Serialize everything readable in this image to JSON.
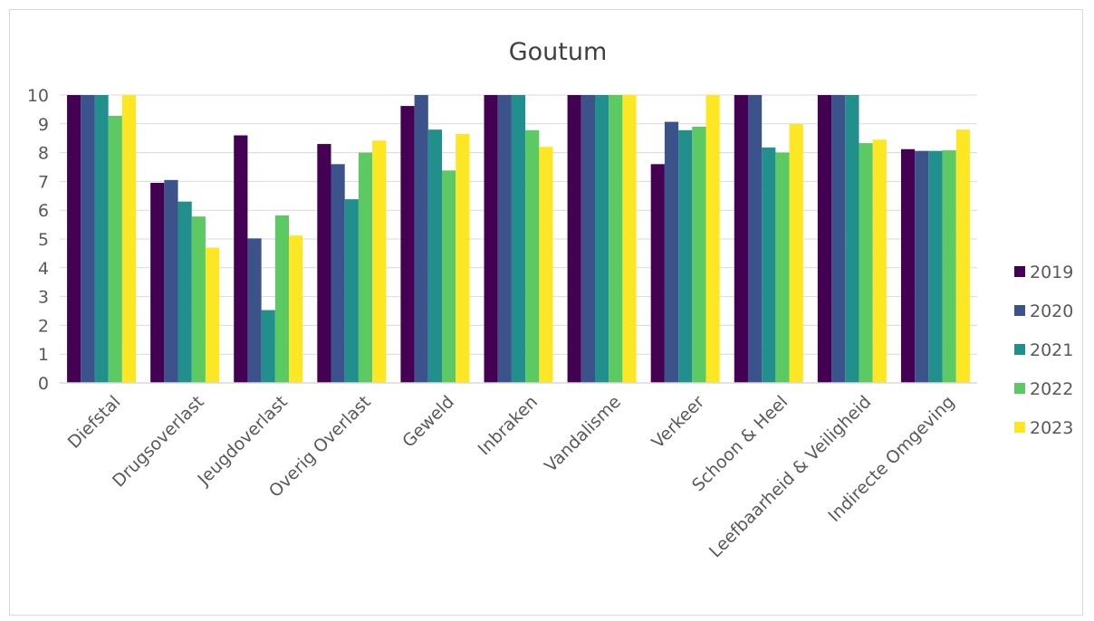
{
  "chart_data": {
    "type": "bar",
    "title": "Goutum",
    "xlabel": "",
    "ylabel": "",
    "ylim": [
      0,
      10
    ],
    "yticks": [
      0,
      1,
      2,
      3,
      4,
      5,
      6,
      7,
      8,
      9,
      10
    ],
    "grid": true,
    "legend_position": "right",
    "categories": [
      "Diefstal",
      "Drugsoverlast",
      "Jeugdoverlast",
      "Overig Overlast",
      "Geweld",
      "Inbraken",
      "Vandalisme",
      "Verkeer",
      "Schoon & Heel",
      "Leefbaarheid & Veiligheid",
      "Indirecte Omgeving"
    ],
    "series": [
      {
        "name": "2019",
        "color": "#440154",
        "values": [
          10,
          6.95,
          8.6,
          8.3,
          9.62,
          10,
          10,
          7.6,
          10,
          10,
          8.12
        ]
      },
      {
        "name": "2020",
        "color": "#3b528b",
        "values": [
          10,
          7.05,
          5.02,
          7.6,
          10,
          10,
          10,
          9.07,
          10,
          10,
          8.06
        ]
      },
      {
        "name": "2021",
        "color": "#21908d",
        "values": [
          10,
          6.3,
          2.53,
          6.38,
          8.8,
          10,
          10,
          8.78,
          8.18,
          10,
          8.06
        ]
      },
      {
        "name": "2022",
        "color": "#5dc963",
        "values": [
          9.28,
          5.78,
          5.82,
          8.0,
          7.38,
          8.78,
          10,
          8.9,
          8.0,
          8.33,
          8.08
        ]
      },
      {
        "name": "2023",
        "color": "#fde725",
        "values": [
          10,
          4.7,
          5.12,
          8.42,
          8.65,
          8.2,
          10,
          10,
          9.0,
          8.45,
          8.8
        ]
      }
    ]
  }
}
